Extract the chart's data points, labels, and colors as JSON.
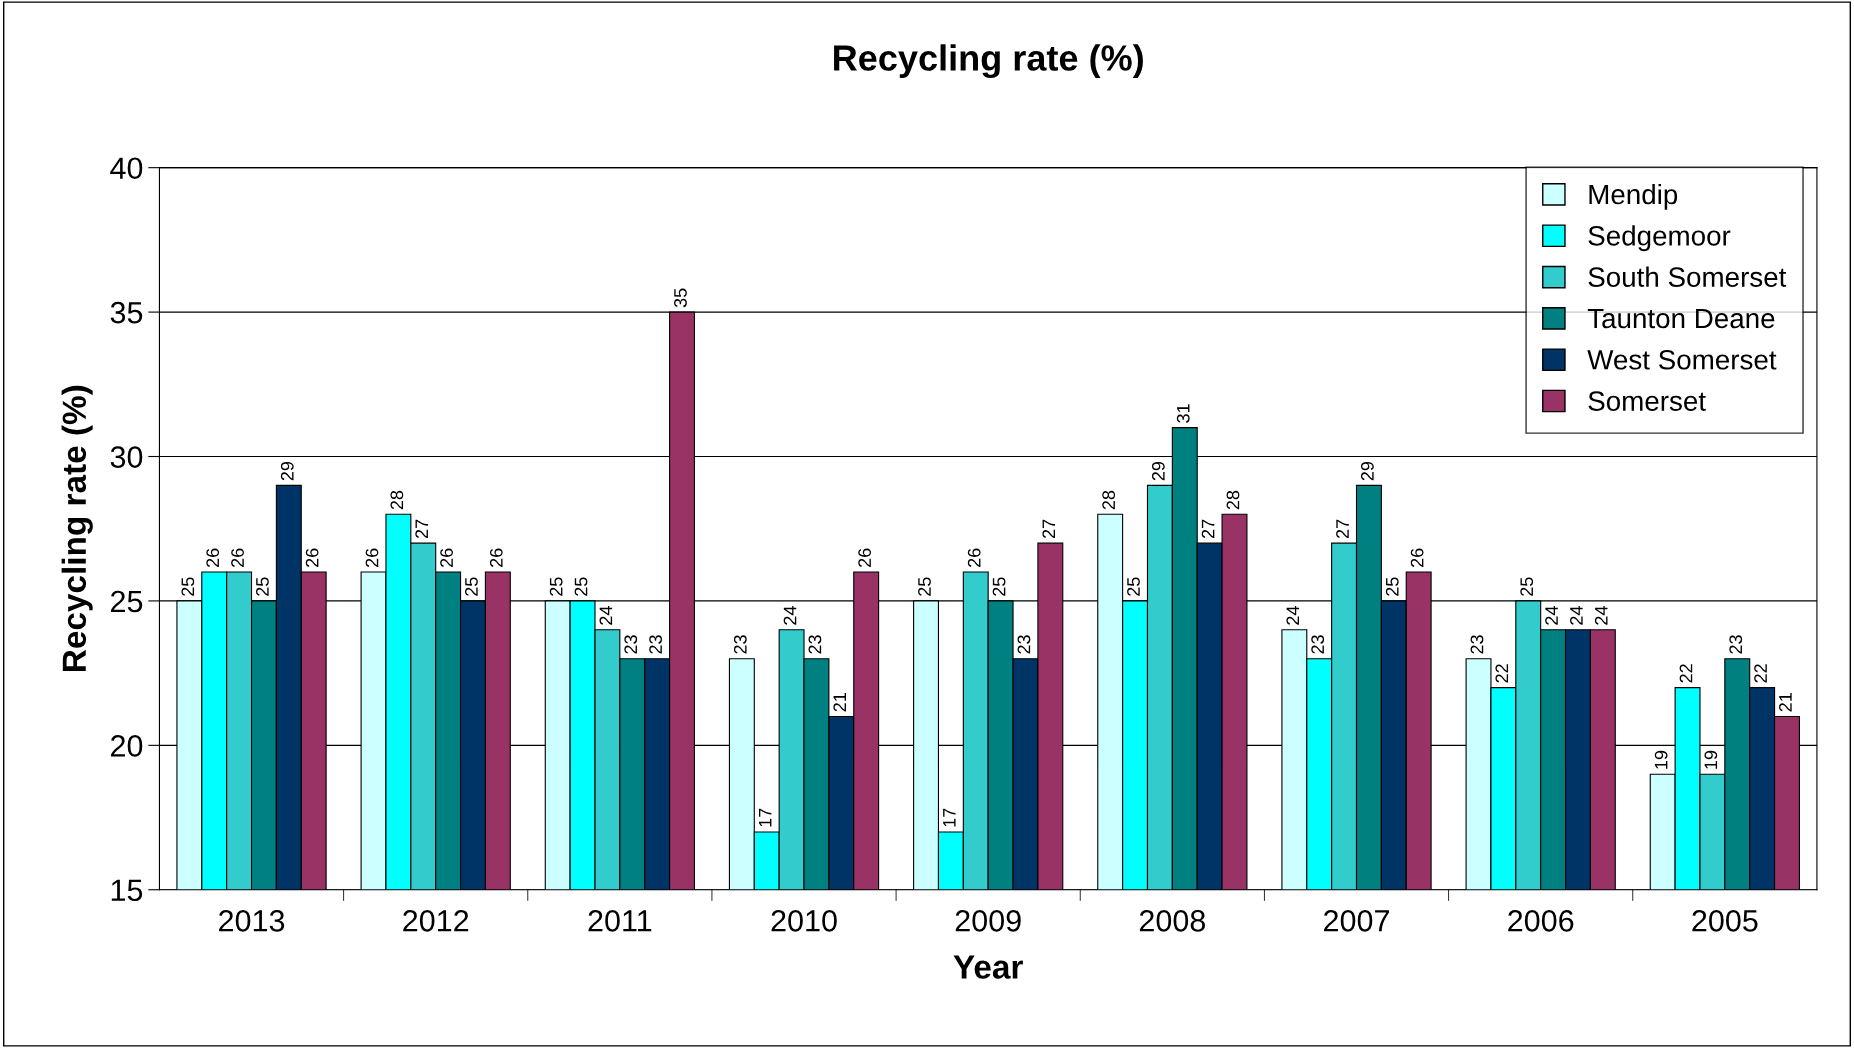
{
  "chart_data": {
    "type": "bar",
    "title": "Recycling rate (%)",
    "xlabel": "Year",
    "ylabel": "Recycling rate (%)",
    "categories": [
      "2013",
      "2012",
      "2011",
      "2010",
      "2009",
      "2008",
      "2007",
      "2006",
      "2005"
    ],
    "series": [
      {
        "name": "Mendip",
        "color": "#ccffff",
        "values": [
          25,
          26,
          25,
          23,
          25,
          28,
          24,
          23,
          19
        ]
      },
      {
        "name": "Sedgemoor",
        "color": "#00ffff",
        "values": [
          26,
          28,
          25,
          17,
          17,
          25,
          23,
          22,
          22
        ]
      },
      {
        "name": "South Somerset",
        "color": "#33cccc",
        "values": [
          26,
          27,
          24,
          24,
          26,
          29,
          27,
          25,
          19
        ]
      },
      {
        "name": "Taunton Deane",
        "color": "#008080",
        "values": [
          25,
          26,
          23,
          23,
          25,
          31,
          29,
          24,
          23
        ]
      },
      {
        "name": "West Somerset",
        "color": "#003366",
        "values": [
          29,
          25,
          23,
          21,
          23,
          27,
          25,
          24,
          22
        ]
      },
      {
        "name": "Somerset",
        "color": "#993366",
        "values": [
          26,
          26,
          35,
          26,
          27,
          28,
          26,
          24,
          21
        ]
      }
    ],
    "ylim": [
      15,
      40
    ],
    "yticks": [
      15,
      20,
      25,
      30,
      35,
      40
    ],
    "grid": "y",
    "legend": "top right",
    "data_labels": true
  }
}
